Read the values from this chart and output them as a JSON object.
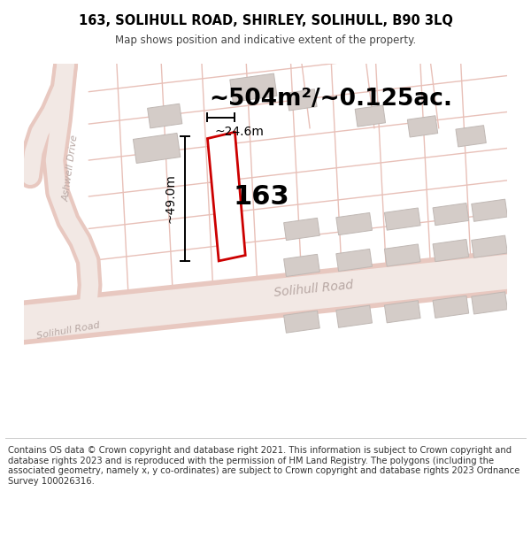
{
  "title": "163, SOLIHULL ROAD, SHIRLEY, SOLIHULL, B90 3LQ",
  "subtitle": "Map shows position and indicative extent of the property.",
  "area_text": "~504m²/~0.125ac.",
  "width_label": "~24.6m",
  "height_label": "~49.0m",
  "number_label": "163",
  "footer_text": "Contains OS data © Crown copyright and database right 2021. This information is subject to Crown copyright and database rights 2023 and is reproduced with the permission of HM Land Registry. The polygons (including the associated geometry, namely x, y co-ordinates) are subject to Crown copyright and database rights 2023 Ordnance Survey 100026316.",
  "bg_color": "#ffffff",
  "map_bg": "#f7f2ef",
  "road_fill": "#f2e8e4",
  "road_edge": "#e8c8c0",
  "road_center": "#e0d0cc",
  "plot_color": "#cc0000",
  "building_color": "#d4ccc8",
  "building_edge": "#c0b8b4",
  "street_line": "#e8c0b8",
  "road_label_color": "#b8a8a4",
  "title_fontsize": 10.5,
  "subtitle_fontsize": 8.5,
  "footer_fontsize": 7.2,
  "area_fontsize": 19,
  "dim_fontsize": 10,
  "num_fontsize": 22
}
